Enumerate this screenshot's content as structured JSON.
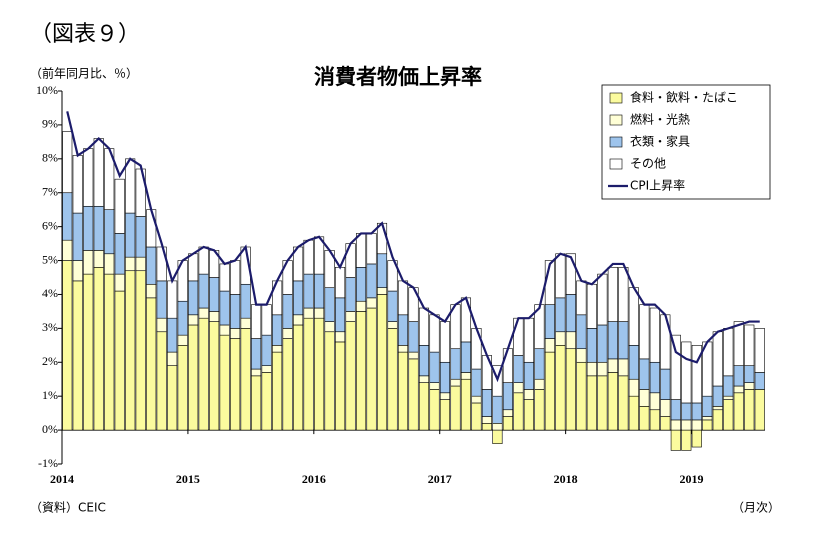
{
  "figure_label": "（図表９）",
  "chart_data": {
    "type": "stacked-bar-line",
    "title": "消費者物価上昇率",
    "y_axis_label": "（前年同月比、％）",
    "x_axis_label": "（月次）",
    "source": "（資料）CEIC",
    "categories": [
      "2014",
      null,
      null,
      null,
      null,
      null,
      null,
      null,
      null,
      null,
      null,
      null,
      "2015",
      null,
      null,
      null,
      null,
      null,
      null,
      null,
      null,
      null,
      null,
      null,
      "2016",
      null,
      null,
      null,
      null,
      null,
      null,
      null,
      null,
      null,
      null,
      null,
      "2017",
      null,
      null,
      null,
      null,
      null,
      null,
      null,
      null,
      null,
      null,
      null,
      "2018",
      null,
      null,
      null,
      null,
      null,
      null,
      null,
      null,
      null,
      null,
      null,
      "2019",
      null,
      null,
      null,
      null,
      null,
      null
    ],
    "ylim": [
      -1,
      10
    ],
    "yticks": [
      {
        "value": -1,
        "label": "-1%"
      },
      {
        "value": 0,
        "label": "0%"
      },
      {
        "value": 1,
        "label": "1%"
      },
      {
        "value": 2,
        "label": "2%"
      },
      {
        "value": 3,
        "label": "3%"
      },
      {
        "value": 4,
        "label": "4%"
      },
      {
        "value": 5,
        "label": "5%"
      },
      {
        "value": 6,
        "label": "6%"
      },
      {
        "value": 7,
        "label": "7%"
      },
      {
        "value": 8,
        "label": "8%"
      },
      {
        "value": 9,
        "label": "9%"
      },
      {
        "value": 10,
        "label": "10%"
      }
    ],
    "legend": "top-right",
    "series": [
      {
        "name": "食料・飲料・たばこ",
        "color": "#fbfb9e",
        "kind": "bar",
        "values": [
          5.0,
          4.4,
          4.6,
          4.8,
          4.6,
          4.1,
          4.7,
          4.7,
          3.9,
          2.9,
          1.9,
          2.5,
          3.1,
          3.3,
          3.2,
          2.8,
          2.7,
          3.0,
          1.6,
          1.7,
          2.3,
          2.7,
          3.1,
          3.3,
          3.3,
          2.9,
          2.6,
          3.2,
          3.5,
          3.6,
          4.0,
          3.0,
          2.3,
          2.1,
          1.4,
          1.2,
          0.9,
          1.3,
          1.5,
          0.8,
          0.2,
          -0.4,
          0.4,
          1.1,
          0.9,
          1.2,
          2.3,
          2.5,
          2.4,
          2.0,
          1.6,
          1.6,
          1.7,
          1.6,
          1.0,
          0.7,
          0.6,
          0.4,
          -0.6,
          -0.6,
          -0.5,
          0.3,
          0.6,
          0.9,
          1.1,
          1.2,
          1.2
        ]
      },
      {
        "name": "燃料・光熱",
        "color": "#ffffd6",
        "kind": "bar",
        "values": [
          0.6,
          0.6,
          0.7,
          0.5,
          0.6,
          0.5,
          0.4,
          0.4,
          0.4,
          0.4,
          0.4,
          0.3,
          0.3,
          0.3,
          0.3,
          0.3,
          0.3,
          0.3,
          0.2,
          0.2,
          0.2,
          0.3,
          0.3,
          0.3,
          0.3,
          0.3,
          0.3,
          0.3,
          0.3,
          0.3,
          0.2,
          0.2,
          0.2,
          0.2,
          0.2,
          0.2,
          0.2,
          0.2,
          0.2,
          0.2,
          0.2,
          0.2,
          0.2,
          0.3,
          0.3,
          0.3,
          0.4,
          0.4,
          0.5,
          0.4,
          0.4,
          0.4,
          0.4,
          0.5,
          0.5,
          0.5,
          0.5,
          0.5,
          0.3,
          0.3,
          0.3,
          0.1,
          0.1,
          0.1,
          0.2,
          0.2,
          0.0
        ]
      },
      {
        "name": "衣類・家具",
        "color": "#9ec4ec",
        "kind": "bar",
        "values": [
          1.4,
          1.4,
          1.3,
          1.3,
          1.3,
          1.2,
          1.3,
          1.2,
          1.1,
          1.1,
          1.0,
          1.0,
          1.0,
          1.0,
          1.0,
          1.0,
          1.0,
          1.0,
          0.9,
          0.9,
          0.9,
          1.0,
          1.0,
          1.0,
          1.0,
          1.0,
          1.0,
          1.0,
          1.0,
          1.0,
          1.0,
          0.9,
          0.9,
          0.9,
          0.9,
          0.9,
          0.9,
          0.9,
          0.9,
          0.8,
          0.8,
          0.8,
          0.8,
          0.8,
          0.8,
          0.9,
          1.0,
          1.0,
          1.1,
          1.0,
          1.0,
          1.1,
          1.1,
          1.1,
          1.0,
          0.9,
          0.9,
          0.9,
          0.6,
          0.5,
          0.5,
          0.6,
          0.6,
          0.6,
          0.6,
          0.5,
          0.5
        ]
      },
      {
        "name": "その他",
        "color": "#ffffff",
        "kind": "bar",
        "values": [
          1.8,
          1.7,
          1.7,
          2.0,
          1.8,
          1.6,
          1.6,
          1.4,
          1.1,
          1.0,
          1.1,
          1.2,
          0.8,
          0.8,
          0.8,
          0.8,
          1.0,
          1.1,
          1.0,
          0.9,
          1.0,
          1.0,
          1.0,
          1.0,
          1.1,
          1.1,
          0.9,
          1.0,
          1.0,
          0.9,
          0.9,
          0.9,
          1.0,
          1.0,
          1.1,
          1.1,
          1.2,
          1.3,
          1.3,
          1.2,
          1.0,
          0.9,
          1.0,
          1.1,
          1.3,
          1.3,
          1.3,
          1.3,
          1.2,
          1.0,
          1.3,
          1.5,
          1.6,
          1.6,
          1.7,
          1.6,
          1.6,
          1.6,
          1.9,
          1.8,
          1.7,
          1.6,
          1.6,
          1.4,
          1.3,
          1.2,
          1.3
        ]
      },
      {
        "name": "CPI上昇率",
        "color": "#1c1c6b",
        "kind": "line",
        "values": [
          9.4,
          8.1,
          8.3,
          8.6,
          8.3,
          7.5,
          8.0,
          7.8,
          6.5,
          5.5,
          4.4,
          5.0,
          5.2,
          5.4,
          5.3,
          4.9,
          5.0,
          5.4,
          3.7,
          3.7,
          4.4,
          5.0,
          5.4,
          5.6,
          5.7,
          5.3,
          4.8,
          5.5,
          5.8,
          5.8,
          6.1,
          5.1,
          4.4,
          4.2,
          3.6,
          3.4,
          3.2,
          3.7,
          3.9,
          3.0,
          2.2,
          1.5,
          2.4,
          3.3,
          3.3,
          3.6,
          4.9,
          5.2,
          5.1,
          4.4,
          4.3,
          4.6,
          4.9,
          4.9,
          4.2,
          3.7,
          3.7,
          3.4,
          2.3,
          2.1,
          2.0,
          2.6,
          2.9,
          3.0,
          3.1,
          3.2,
          3.2
        ]
      }
    ]
  }
}
